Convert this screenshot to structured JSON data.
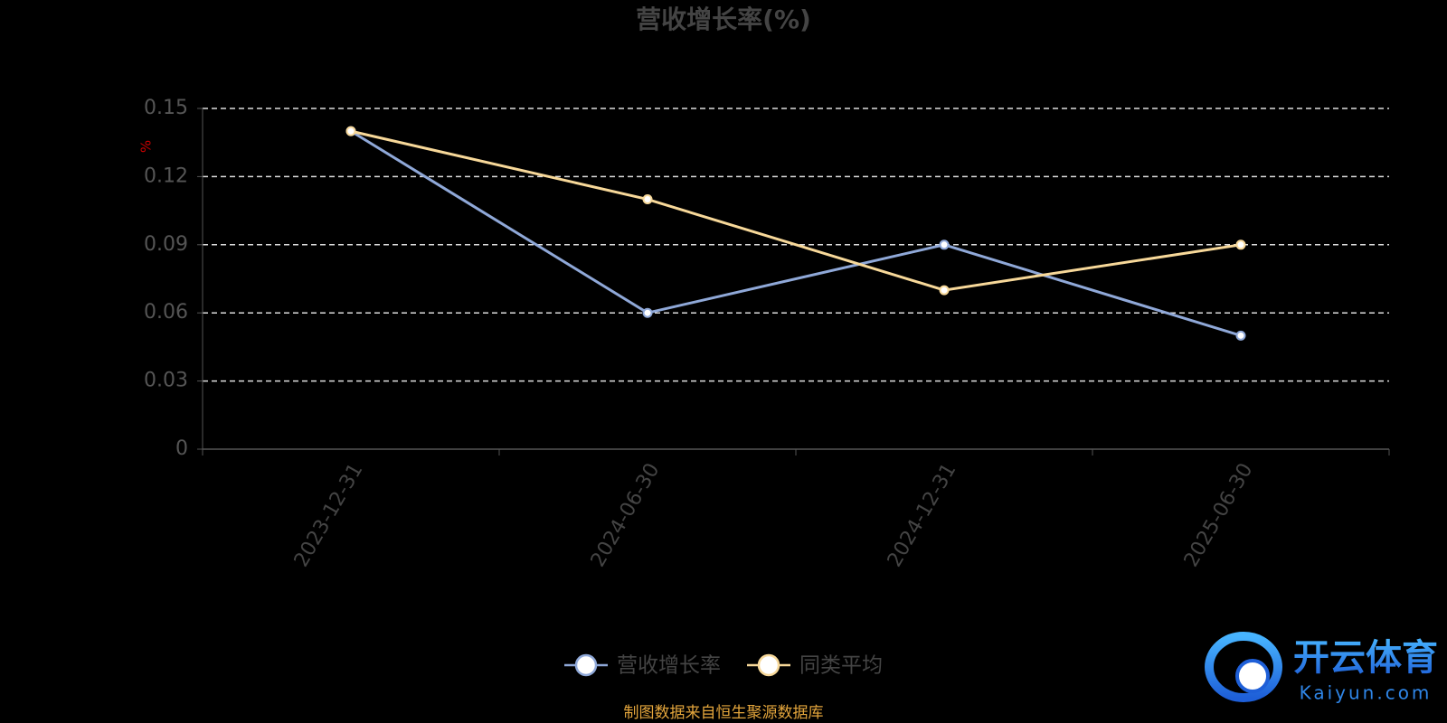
{
  "chart_data": {
    "type": "line",
    "title": "营收增长率(%)",
    "y_label": "%",
    "categories": [
      "2023-12-31",
      "2024-06-30",
      "2024-12-31",
      "2025-06-30"
    ],
    "series": [
      {
        "name": "营收增长率",
        "color": "#8fa8d8",
        "values": [
          0.14,
          0.06,
          0.09,
          0.05
        ]
      },
      {
        "name": "同类平均",
        "color": "#f7d899",
        "values": [
          0.14,
          0.11,
          0.07,
          0.09
        ]
      }
    ],
    "ylim": [
      0,
      0.15
    ],
    "yticks": [
      0,
      0.03,
      0.06,
      0.09,
      0.12,
      0.15
    ],
    "grid": true,
    "legend": "bottom",
    "source": "制图数据来自恒生聚源数据库"
  },
  "watermark": {
    "name": "开云体育",
    "url": "Kaiyun.com"
  }
}
